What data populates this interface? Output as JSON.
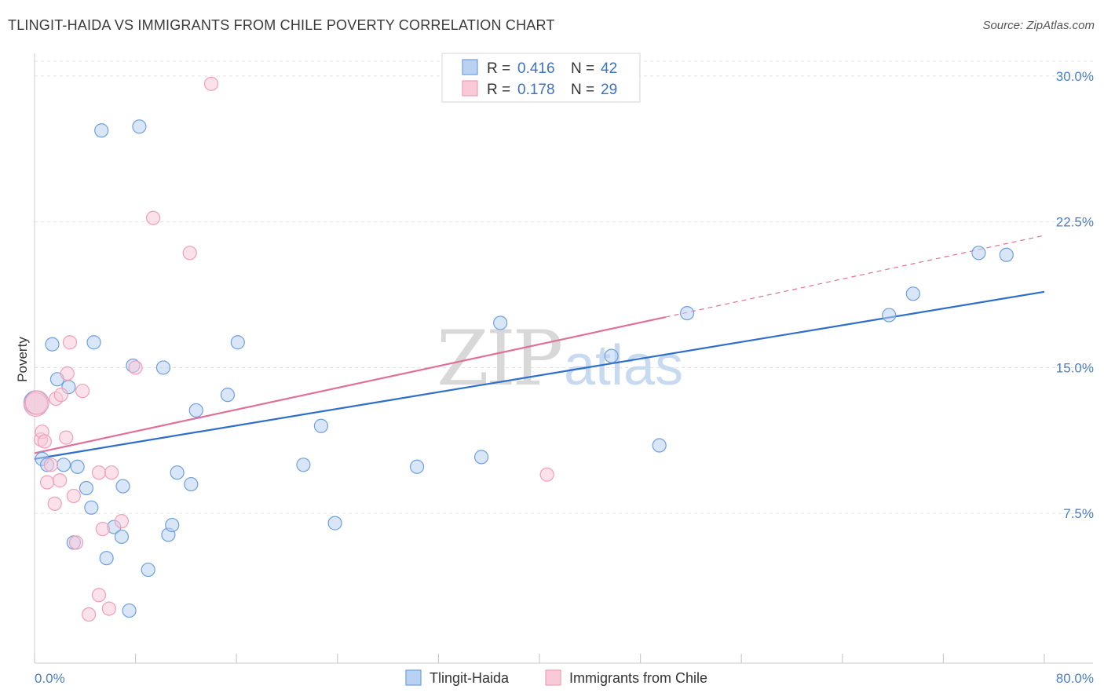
{
  "title": "TLINGIT-HAIDA VS IMMIGRANTS FROM CHILE POVERTY CORRELATION CHART",
  "source": "Source: ZipAtlas.com",
  "watermark": {
    "zip": "ZIP",
    "atlas": "atlas"
  },
  "chart_data": {
    "type": "scatter",
    "ylabel": "Poverty",
    "xlim": [
      0,
      80
    ],
    "ylim": [
      0,
      31.5
    ],
    "x_tick_labels": [
      "0.0%",
      "80.0%"
    ],
    "y_ticks": [
      7.5,
      15.0,
      22.5,
      30.0
    ],
    "y_tick_labels": [
      "7.5%",
      "15.0%",
      "22.5%",
      "30.0%"
    ],
    "grid": true,
    "legend_position": "top-center",
    "series": [
      {
        "name": "Tlingit-Haida",
        "color": "#6fa0dc",
        "fill": "#b9d2f2",
        "line_color": "#2f6fc9",
        "r_label": "R =",
        "r_value": "0.416",
        "n_label": "N =",
        "n_value": "42",
        "trend": {
          "x": [
            0,
            80
          ],
          "y": [
            10.3,
            18.9
          ]
        },
        "points": [
          [
            0.1,
            13.2
          ],
          [
            0.6,
            10.3
          ],
          [
            1.0,
            10.0
          ],
          [
            1.4,
            16.2
          ],
          [
            1.8,
            14.4
          ],
          [
            2.3,
            10.0
          ],
          [
            2.7,
            14.0
          ],
          [
            3.1,
            6.0
          ],
          [
            3.4,
            9.9
          ],
          [
            4.1,
            8.8
          ],
          [
            4.5,
            7.8
          ],
          [
            4.7,
            16.3
          ],
          [
            5.3,
            27.2
          ],
          [
            5.7,
            5.2
          ],
          [
            6.3,
            6.8
          ],
          [
            6.9,
            6.3
          ],
          [
            7.0,
            8.9
          ],
          [
            7.8,
            15.1
          ],
          [
            8.3,
            27.4
          ],
          [
            9.0,
            4.6
          ],
          [
            10.2,
            15.0
          ],
          [
            10.6,
            6.4
          ],
          [
            10.9,
            6.9
          ],
          [
            11.3,
            9.6
          ],
          [
            12.4,
            9.0
          ],
          [
            12.8,
            12.8
          ],
          [
            15.3,
            13.6
          ],
          [
            16.1,
            16.3
          ],
          [
            21.3,
            10.0
          ],
          [
            22.7,
            12.0
          ],
          [
            23.8,
            7.0
          ],
          [
            30.3,
            9.9
          ],
          [
            35.4,
            10.4
          ],
          [
            36.9,
            17.3
          ],
          [
            45.7,
            15.6
          ],
          [
            49.5,
            11.0
          ],
          [
            51.7,
            17.8
          ],
          [
            67.7,
            17.7
          ],
          [
            69.6,
            18.8
          ],
          [
            74.8,
            20.9
          ],
          [
            77.0,
            20.8
          ],
          [
            7.5,
            2.5
          ]
        ]
      },
      {
        "name": "Immigrants from Chile",
        "color": "#ef9fb9",
        "fill": "#f8cad8",
        "line_color": "#e07098",
        "r_label": "R =",
        "r_value": "0.178",
        "n_label": "N =",
        "n_value": "29",
        "trend": {
          "x": [
            0,
            80
          ],
          "y": [
            10.6,
            21.8
          ]
        },
        "trend_solid_until": 50,
        "points": [
          [
            0.1,
            13.1
          ],
          [
            0.5,
            11.3
          ],
          [
            0.6,
            11.7
          ],
          [
            0.8,
            11.2
          ],
          [
            1.0,
            9.1
          ],
          [
            1.3,
            10.0
          ],
          [
            1.6,
            8.0
          ],
          [
            1.7,
            13.4
          ],
          [
            2.0,
            9.2
          ],
          [
            2.1,
            13.6
          ],
          [
            2.5,
            11.4
          ],
          [
            2.6,
            14.7
          ],
          [
            2.8,
            16.3
          ],
          [
            3.1,
            8.4
          ],
          [
            3.3,
            6.0
          ],
          [
            3.8,
            13.8
          ],
          [
            4.3,
            2.3
          ],
          [
            5.1,
            3.3
          ],
          [
            5.1,
            9.6
          ],
          [
            5.4,
            6.7
          ],
          [
            5.9,
            2.6
          ],
          [
            6.1,
            9.6
          ],
          [
            6.9,
            7.1
          ],
          [
            8.0,
            15.0
          ],
          [
            9.4,
            22.7
          ],
          [
            12.3,
            20.9
          ],
          [
            14.0,
            29.6
          ],
          [
            40.6,
            9.5
          ],
          [
            0.2,
            13.2
          ]
        ]
      }
    ]
  }
}
